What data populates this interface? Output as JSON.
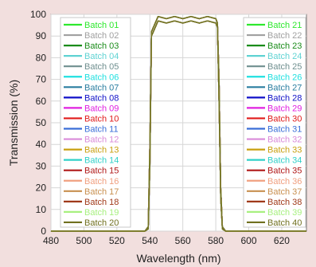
{
  "chart_data": {
    "type": "line",
    "xlabel": "Wavelength (nm)",
    "ylabel": "Transmission (%)",
    "xlim": [
      480,
      635
    ],
    "ylim": [
      0,
      100
    ],
    "xticks": [
      480,
      500,
      520,
      540,
      560,
      580,
      600,
      620
    ],
    "yticks": [
      0,
      10,
      20,
      30,
      40,
      50,
      60,
      70,
      80,
      90,
      100
    ],
    "grid": true,
    "legend_placement": "left and right inside plot, two columns",
    "sample_x": [
      480,
      537,
      539,
      540,
      541,
      545,
      550,
      555,
      560,
      565,
      570,
      575,
      580,
      581,
      582,
      583,
      584,
      586,
      635
    ],
    "series": [
      {
        "name": "Batch 01",
        "color": "#2ee82e",
        "values": [
          0,
          0,
          2,
          40,
          92,
          99,
          98,
          99,
          98,
          99,
          98,
          99,
          98,
          96,
          70,
          20,
          2,
          0,
          0
        ]
      },
      {
        "name": "Batch 02",
        "color": "#a0a0a0",
        "values": [
          0,
          0,
          2,
          40,
          92,
          99,
          98,
          99,
          98,
          99,
          98,
          99,
          98,
          96,
          70,
          20,
          2,
          0,
          0
        ]
      },
      {
        "name": "Batch 03",
        "color": "#1a8c1a",
        "values": [
          0,
          0,
          2,
          40,
          92,
          99,
          98,
          99,
          98,
          99,
          98,
          99,
          98,
          96,
          70,
          20,
          2,
          0,
          0
        ]
      },
      {
        "name": "Batch 04",
        "color": "#5fd3d3",
        "values": [
          0,
          0,
          2,
          40,
          92,
          99,
          98,
          99,
          98,
          99,
          98,
          99,
          98,
          96,
          70,
          20,
          2,
          0,
          0
        ]
      },
      {
        "name": "Batch 05",
        "color": "#6f8f8f",
        "values": [
          0,
          0,
          2,
          40,
          92,
          99,
          98,
          99,
          98,
          99,
          98,
          99,
          98,
          96,
          70,
          20,
          2,
          0,
          0
        ]
      },
      {
        "name": "Batch 06",
        "color": "#1fe0e0",
        "values": [
          0,
          0,
          2,
          40,
          92,
          99,
          98,
          99,
          98,
          99,
          98,
          99,
          98,
          96,
          70,
          20,
          2,
          0,
          0
        ]
      },
      {
        "name": "Batch 07",
        "color": "#2a7ea0",
        "values": [
          0,
          0,
          2,
          40,
          92,
          99,
          98,
          99,
          98,
          99,
          98,
          99,
          98,
          96,
          70,
          20,
          2,
          0,
          0
        ]
      },
      {
        "name": "Batch 08",
        "color": "#1010c8",
        "values": [
          0,
          0,
          2,
          40,
          92,
          99,
          98,
          99,
          98,
          99,
          98,
          99,
          98,
          96,
          70,
          20,
          2,
          0,
          0
        ]
      },
      {
        "name": "Batch 09",
        "color": "#e020e0",
        "values": [
          0,
          0,
          2,
          40,
          92,
          99,
          98,
          99,
          98,
          99,
          98,
          99,
          98,
          96,
          70,
          20,
          2,
          0,
          0
        ]
      },
      {
        "name": "Batch 10",
        "color": "#e01a1a",
        "values": [
          0,
          0,
          2,
          40,
          92,
          99,
          98,
          99,
          98,
          99,
          98,
          99,
          98,
          96,
          70,
          20,
          2,
          0,
          0
        ]
      },
      {
        "name": "Batch 11",
        "color": "#3a6ed8",
        "values": [
          0,
          0,
          2,
          40,
          92,
          99,
          98,
          99,
          98,
          99,
          98,
          99,
          98,
          96,
          70,
          20,
          2,
          0,
          0
        ]
      },
      {
        "name": "Batch 12",
        "color": "#d98ad9",
        "values": [
          0,
          0,
          2,
          40,
          92,
          99,
          98,
          99,
          98,
          99,
          98,
          99,
          98,
          96,
          70,
          20,
          2,
          0,
          0
        ]
      },
      {
        "name": "Batch 13",
        "color": "#c8a010",
        "values": [
          0,
          0,
          2,
          40,
          92,
          99,
          98,
          99,
          98,
          99,
          98,
          99,
          98,
          96,
          70,
          20,
          2,
          0,
          0
        ]
      },
      {
        "name": "Batch 14",
        "color": "#30d0c8",
        "values": [
          0,
          0,
          2,
          40,
          92,
          99,
          98,
          99,
          98,
          99,
          98,
          99,
          98,
          96,
          70,
          20,
          2,
          0,
          0
        ]
      },
      {
        "name": "Batch 15",
        "color": "#b01818",
        "values": [
          0,
          0,
          2,
          40,
          92,
          99,
          98,
          99,
          98,
          99,
          98,
          99,
          98,
          96,
          70,
          20,
          2,
          0,
          0
        ]
      },
      {
        "name": "Batch 16",
        "color": "#f0a080",
        "values": [
          0,
          0,
          2,
          40,
          92,
          99,
          98,
          99,
          98,
          99,
          98,
          99,
          98,
          96,
          70,
          20,
          2,
          0,
          0
        ]
      },
      {
        "name": "Batch 17",
        "color": "#c89050",
        "values": [
          0,
          0,
          2,
          40,
          92,
          99,
          98,
          99,
          98,
          99,
          98,
          99,
          98,
          96,
          70,
          20,
          2,
          0,
          0
        ]
      },
      {
        "name": "Batch 18",
        "color": "#a03a1a",
        "values": [
          0,
          0,
          2,
          40,
          92,
          99,
          98,
          99,
          98,
          99,
          98,
          99,
          98,
          96,
          70,
          20,
          2,
          0,
          0
        ]
      },
      {
        "name": "Batch 19",
        "color": "#a8f080",
        "values": [
          0,
          0,
          2,
          40,
          92,
          99,
          98,
          99,
          98,
          99,
          98,
          99,
          98,
          96,
          70,
          20,
          2,
          0,
          0
        ]
      },
      {
        "name": "Batch 20",
        "color": "#707020",
        "values": [
          0,
          0,
          2,
          40,
          92,
          99,
          98,
          99,
          98,
          99,
          98,
          99,
          98,
          96,
          70,
          20,
          2,
          0,
          0
        ]
      },
      {
        "name": "Batch 21",
        "color": "#2ee82e",
        "values": [
          0,
          0,
          1,
          30,
          90,
          97,
          96,
          97,
          96,
          97,
          96,
          97,
          96,
          94,
          60,
          15,
          1,
          0,
          0
        ]
      },
      {
        "name": "Batch 22",
        "color": "#a0a0a0",
        "values": [
          0,
          0,
          1,
          30,
          90,
          97,
          96,
          97,
          96,
          97,
          96,
          97,
          96,
          94,
          60,
          15,
          1,
          0,
          0
        ]
      },
      {
        "name": "Batch 23",
        "color": "#1a8c1a",
        "values": [
          0,
          0,
          1,
          30,
          90,
          97,
          96,
          97,
          96,
          97,
          96,
          97,
          96,
          94,
          60,
          15,
          1,
          0,
          0
        ]
      },
      {
        "name": "Batch 24",
        "color": "#5fd3d3",
        "values": [
          0,
          0,
          1,
          30,
          90,
          97,
          96,
          97,
          96,
          97,
          96,
          97,
          96,
          94,
          60,
          15,
          1,
          0,
          0
        ]
      },
      {
        "name": "Batch 25",
        "color": "#6f8f8f",
        "values": [
          0,
          0,
          1,
          30,
          90,
          97,
          96,
          97,
          96,
          97,
          96,
          97,
          96,
          94,
          60,
          15,
          1,
          0,
          0
        ]
      },
      {
        "name": "Batch 26",
        "color": "#1fe0e0",
        "values": [
          0,
          0,
          1,
          30,
          90,
          97,
          96,
          97,
          96,
          97,
          96,
          97,
          96,
          94,
          60,
          15,
          1,
          0,
          0
        ]
      },
      {
        "name": "Batch 27",
        "color": "#2a7ea0",
        "values": [
          0,
          0,
          1,
          30,
          90,
          97,
          96,
          97,
          96,
          97,
          96,
          97,
          96,
          94,
          60,
          15,
          1,
          0,
          0
        ]
      },
      {
        "name": "Batch 28",
        "color": "#1010c8",
        "values": [
          0,
          0,
          1,
          30,
          90,
          97,
          96,
          97,
          96,
          97,
          96,
          97,
          96,
          94,
          60,
          15,
          1,
          0,
          0
        ]
      },
      {
        "name": "Batch 29",
        "color": "#e020e0",
        "values": [
          0,
          0,
          1,
          30,
          90,
          97,
          96,
          97,
          96,
          97,
          96,
          97,
          96,
          94,
          60,
          15,
          1,
          0,
          0
        ]
      },
      {
        "name": "Batch 30",
        "color": "#e01a1a",
        "values": [
          0,
          0,
          1,
          30,
          90,
          97,
          96,
          97,
          96,
          97,
          96,
          97,
          96,
          94,
          60,
          15,
          1,
          0,
          0
        ]
      },
      {
        "name": "Batch 31",
        "color": "#3a6ed8",
        "values": [
          0,
          0,
          1,
          30,
          90,
          97,
          96,
          97,
          96,
          97,
          96,
          97,
          96,
          94,
          60,
          15,
          1,
          0,
          0
        ]
      },
      {
        "name": "Batch 32",
        "color": "#d98ad9",
        "values": [
          0,
          0,
          1,
          30,
          90,
          97,
          96,
          97,
          96,
          97,
          96,
          97,
          96,
          94,
          60,
          15,
          1,
          0,
          0
        ]
      },
      {
        "name": "Batch 33",
        "color": "#c8a010",
        "values": [
          0,
          0,
          1,
          30,
          90,
          97,
          96,
          97,
          96,
          97,
          96,
          97,
          96,
          94,
          60,
          15,
          1,
          0,
          0
        ]
      },
      {
        "name": "Batch 34",
        "color": "#30d0c8",
        "values": [
          0,
          0,
          1,
          30,
          90,
          97,
          96,
          97,
          96,
          97,
          96,
          97,
          96,
          94,
          60,
          15,
          1,
          0,
          0
        ]
      },
      {
        "name": "Batch 35",
        "color": "#b01818",
        "values": [
          0,
          0,
          1,
          30,
          90,
          97,
          96,
          97,
          96,
          97,
          96,
          97,
          96,
          94,
          60,
          15,
          1,
          0,
          0
        ]
      },
      {
        "name": "Batch 36",
        "color": "#f0a080",
        "values": [
          0,
          0,
          1,
          30,
          90,
          97,
          96,
          97,
          96,
          97,
          96,
          97,
          96,
          94,
          60,
          15,
          1,
          0,
          0
        ]
      },
      {
        "name": "Batch 37",
        "color": "#c89050",
        "values": [
          0,
          0,
          1,
          30,
          90,
          97,
          96,
          97,
          96,
          97,
          96,
          97,
          96,
          94,
          60,
          15,
          1,
          0,
          0
        ]
      },
      {
        "name": "Batch 38",
        "color": "#a03a1a",
        "values": [
          0,
          0,
          1,
          30,
          90,
          97,
          96,
          97,
          96,
          97,
          96,
          97,
          96,
          94,
          60,
          15,
          1,
          0,
          0
        ]
      },
      {
        "name": "Batch 39",
        "color": "#a8f080",
        "values": [
          0,
          0,
          1,
          30,
          90,
          97,
          96,
          97,
          96,
          97,
          96,
          97,
          96,
          94,
          60,
          15,
          1,
          0,
          0
        ]
      },
      {
        "name": "Batch 40",
        "color": "#707020",
        "values": [
          0,
          0,
          1,
          30,
          90,
          97,
          96,
          97,
          96,
          97,
          96,
          97,
          96,
          94,
          60,
          15,
          1,
          0,
          0
        ]
      }
    ]
  }
}
